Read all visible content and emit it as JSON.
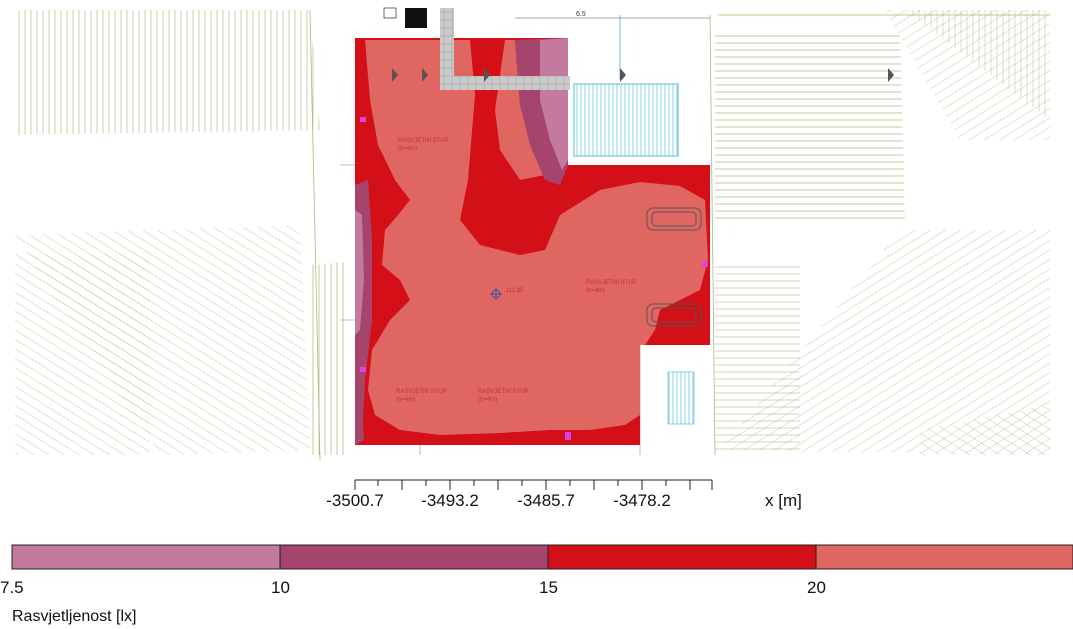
{
  "plan": {
    "annotations": {
      "pole_1": "RASVJETNI STUP",
      "pole_1_h": "(h=4m)",
      "pole_2": "RASVJETNI STUP",
      "pole_2_h": "(h=4m)",
      "pole_3": "RASVJETNI STUP",
      "pole_3_h": "(h=4m)",
      "pole_4": "RASVJETNI STUP",
      "pole_4_h": "(h=4m)",
      "level_mark": "111.85",
      "dim_top": "6.5"
    }
  },
  "x_axis": {
    "ticks": [
      "-3500.7",
      "-3493.2",
      "-3485.7",
      "-3478.2"
    ],
    "label": "x [m]"
  },
  "legend": {
    "title": "Rasvjetljenost [lx]",
    "boundaries": [
      "7.5",
      "10",
      "15",
      "20"
    ],
    "bands": [
      {
        "from": 7.5,
        "to": 10,
        "color": "#c47a9e"
      },
      {
        "from": 10,
        "to": 15,
        "color": "#a5456e"
      },
      {
        "from": 15,
        "to": 20,
        "color": "#d30f17"
      },
      {
        "from": 20,
        "to": 25,
        "color": "#e06661"
      }
    ]
  },
  "colors": {
    "lx_7_5_10": "#c47a9e",
    "lx_10_15": "#a5456e",
    "lx_15_20": "#d30f17",
    "lx_20_plus": "#e06661",
    "hatch_line": "#9aa06a",
    "pool": "#6ec6e0"
  }
}
